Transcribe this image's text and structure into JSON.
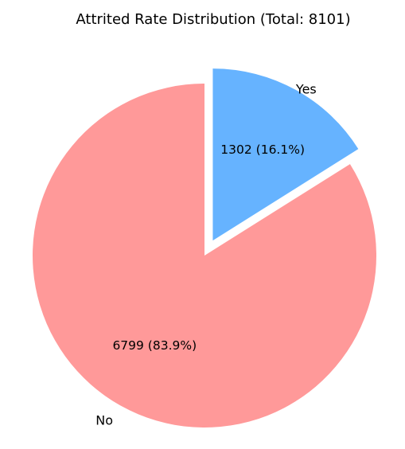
{
  "chart_data": {
    "type": "pie",
    "title": "Attrited Rate Distribution (Total: 8101)",
    "total": 8101,
    "start_angle_deg": 90,
    "direction": "clockwise",
    "slices": [
      {
        "label": "Yes",
        "value": 1302,
        "percent": 16.1,
        "value_label": "1302 (16.1%)",
        "color": "#66b3ff",
        "exploded": true
      },
      {
        "label": "No",
        "value": 6799,
        "percent": 83.9,
        "value_label": "6799 (83.9%)",
        "color": "#ff9999",
        "exploded": false
      }
    ]
  }
}
